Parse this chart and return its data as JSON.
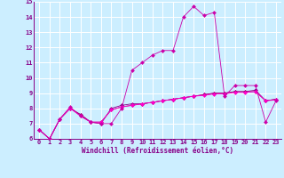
{
  "xlabel": "Windchill (Refroidissement éolien,°C)",
  "ylabel": "",
  "bg_color": "#cceeff",
  "grid_color": "#ffffff",
  "line_color1": "#cc00aa",
  "line_color2": "#880088",
  "line_color3": "#aa0077",
  "line_color4": "#ff00cc",
  "xlim": [
    -0.5,
    23.5
  ],
  "ylim": [
    6,
    15
  ],
  "yticks": [
    6,
    7,
    8,
    9,
    10,
    11,
    12,
    13,
    14,
    15
  ],
  "xticks": [
    0,
    1,
    2,
    3,
    4,
    5,
    6,
    7,
    8,
    9,
    10,
    11,
    12,
    13,
    14,
    15,
    16,
    17,
    18,
    19,
    20,
    21,
    22,
    23
  ],
  "series1_x": [
    0,
    1,
    2,
    3,
    4,
    5,
    6,
    7,
    8,
    9,
    10,
    11,
    12,
    13,
    14,
    15,
    16,
    17,
    18,
    19,
    20,
    21,
    22,
    23
  ],
  "series1_y": [
    6.6,
    6.0,
    7.3,
    8.1,
    7.5,
    7.1,
    7.0,
    7.0,
    8.0,
    10.5,
    11.0,
    11.5,
    11.8,
    11.8,
    14.0,
    14.7,
    14.1,
    14.3,
    8.8,
    9.5,
    9.5,
    9.5,
    7.1,
    8.5
  ],
  "series2_x": [
    0,
    1,
    2,
    3,
    4,
    5,
    6,
    7,
    8,
    9,
    10,
    11,
    12,
    13,
    14,
    15,
    16,
    17,
    18,
    19,
    20,
    21,
    22,
    23
  ],
  "series2_y": [
    6.6,
    6.0,
    7.3,
    8.0,
    7.6,
    7.1,
    7.0,
    8.0,
    8.2,
    8.3,
    8.3,
    8.4,
    8.5,
    8.6,
    8.7,
    8.8,
    8.9,
    9.0,
    9.0,
    9.1,
    9.1,
    9.2,
    8.5,
    8.6
  ],
  "series3_x": [
    0,
    1,
    2,
    3,
    4,
    5,
    6,
    7,
    8,
    9,
    10,
    11,
    12,
    13,
    14,
    15,
    16,
    17,
    18,
    19,
    20,
    21,
    22,
    23
  ],
  "series3_y": [
    6.6,
    6.0,
    7.3,
    8.0,
    7.6,
    7.1,
    7.1,
    7.9,
    8.1,
    8.2,
    8.3,
    8.4,
    8.5,
    8.6,
    8.7,
    8.8,
    8.9,
    9.0,
    9.0,
    9.1,
    9.1,
    9.1,
    8.5,
    8.6
  ],
  "series4_x": [
    0,
    1,
    2,
    3,
    4,
    5,
    6,
    7,
    8,
    9,
    10,
    11,
    12,
    13,
    14,
    15,
    16,
    17,
    18,
    19,
    20,
    21,
    22,
    23
  ],
  "series4_y": [
    6.6,
    6.0,
    7.3,
    8.0,
    7.5,
    7.1,
    7.1,
    7.9,
    8.1,
    8.2,
    8.3,
    8.4,
    8.5,
    8.6,
    8.7,
    8.8,
    8.85,
    8.95,
    8.95,
    9.05,
    9.05,
    9.1,
    8.5,
    8.55
  ],
  "tick_fontsize": 5.0,
  "xlabel_fontsize": 5.5
}
